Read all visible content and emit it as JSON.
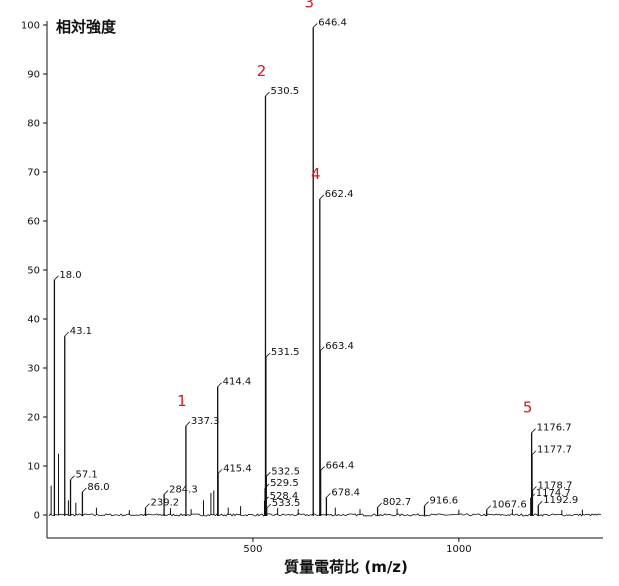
{
  "chart_data": {
    "type": "line",
    "title": "",
    "ylabel": "相対強度",
    "xlabel": "質量電荷比 (m/z)",
    "xlim": [
      0,
      1350
    ],
    "ylim": [
      0,
      100
    ],
    "x_ticks": [
      500,
      1000
    ],
    "x_tick_labels": [
      "500",
      "1000"
    ],
    "y_ticks": [
      0,
      10,
      20,
      30,
      40,
      50,
      60,
      70,
      80,
      90,
      100
    ],
    "y_tick_labels": [
      "0",
      "10",
      "20",
      "30",
      "40",
      "50",
      "60",
      "70",
      "80",
      "90",
      "100"
    ],
    "grid": false,
    "line_color": "#111111",
    "accent_color": "#d7191c",
    "peaks": [
      {
        "mz": 18.0,
        "intensity": 48,
        "label": "18.0"
      },
      {
        "mz": 43.1,
        "intensity": 36.5,
        "label": "43.1"
      },
      {
        "mz": 57.1,
        "intensity": 7.2,
        "label": "57.1"
      },
      {
        "mz": 86.0,
        "intensity": 4.7,
        "label": "86.0"
      },
      {
        "mz": 239.2,
        "intensity": 1.5,
        "label": "239.2"
      },
      {
        "mz": 284.3,
        "intensity": 4.2,
        "label": "284.3"
      },
      {
        "mz": 337.3,
        "intensity": 18.2,
        "label": "337.3"
      },
      {
        "mz": 414.4,
        "intensity": 26.2,
        "label": "414.4"
      },
      {
        "mz": 415.4,
        "intensity": 8.5,
        "label": "415.4"
      },
      {
        "mz": 528.4,
        "intensity": 2.9,
        "label": "528.4"
      },
      {
        "mz": 529.5,
        "intensity": 5.5,
        "label": "529.5"
      },
      {
        "mz": 530.5,
        "intensity": 85.5,
        "label": "530.5"
      },
      {
        "mz": 531.5,
        "intensity": 32.2,
        "label": "531.5"
      },
      {
        "mz": 532.5,
        "intensity": 7.9,
        "label": "532.5"
      },
      {
        "mz": 533.5,
        "intensity": 1.4,
        "label": "533.5"
      },
      {
        "mz": 646.4,
        "intensity": 99.5,
        "label": "646.4"
      },
      {
        "mz": 662.4,
        "intensity": 64.5,
        "label": "662.4"
      },
      {
        "mz": 663.4,
        "intensity": 33.5,
        "label": "663.4"
      },
      {
        "mz": 664.4,
        "intensity": 9.1,
        "label": "664.4"
      },
      {
        "mz": 678.4,
        "intensity": 3.6,
        "label": "678.4"
      },
      {
        "mz": 802.7,
        "intensity": 1.6,
        "label": "802.7"
      },
      {
        "mz": 916.6,
        "intensity": 1.9,
        "label": "916.6"
      },
      {
        "mz": 1067.6,
        "intensity": 1.1,
        "label": "1067.6"
      },
      {
        "mz": 1174.7,
        "intensity": 3.5,
        "label": "1174.7"
      },
      {
        "mz": 1176.7,
        "intensity": 16.8,
        "label": "1176.7"
      },
      {
        "mz": 1177.7,
        "intensity": 12.3,
        "label": "1177.7"
      },
      {
        "mz": 1178.7,
        "intensity": 5.0,
        "label": "1178.7"
      },
      {
        "mz": 1192.9,
        "intensity": 2.0,
        "label": "1192.9"
      }
    ],
    "annotations": [
      {
        "text": "1",
        "mz": 337.3
      },
      {
        "text": "2",
        "mz": 530.5
      },
      {
        "text": "3",
        "mz": 646.4
      },
      {
        "text": "4",
        "mz": 662.4
      },
      {
        "text": "5",
        "mz": 1176.7
      }
    ]
  }
}
